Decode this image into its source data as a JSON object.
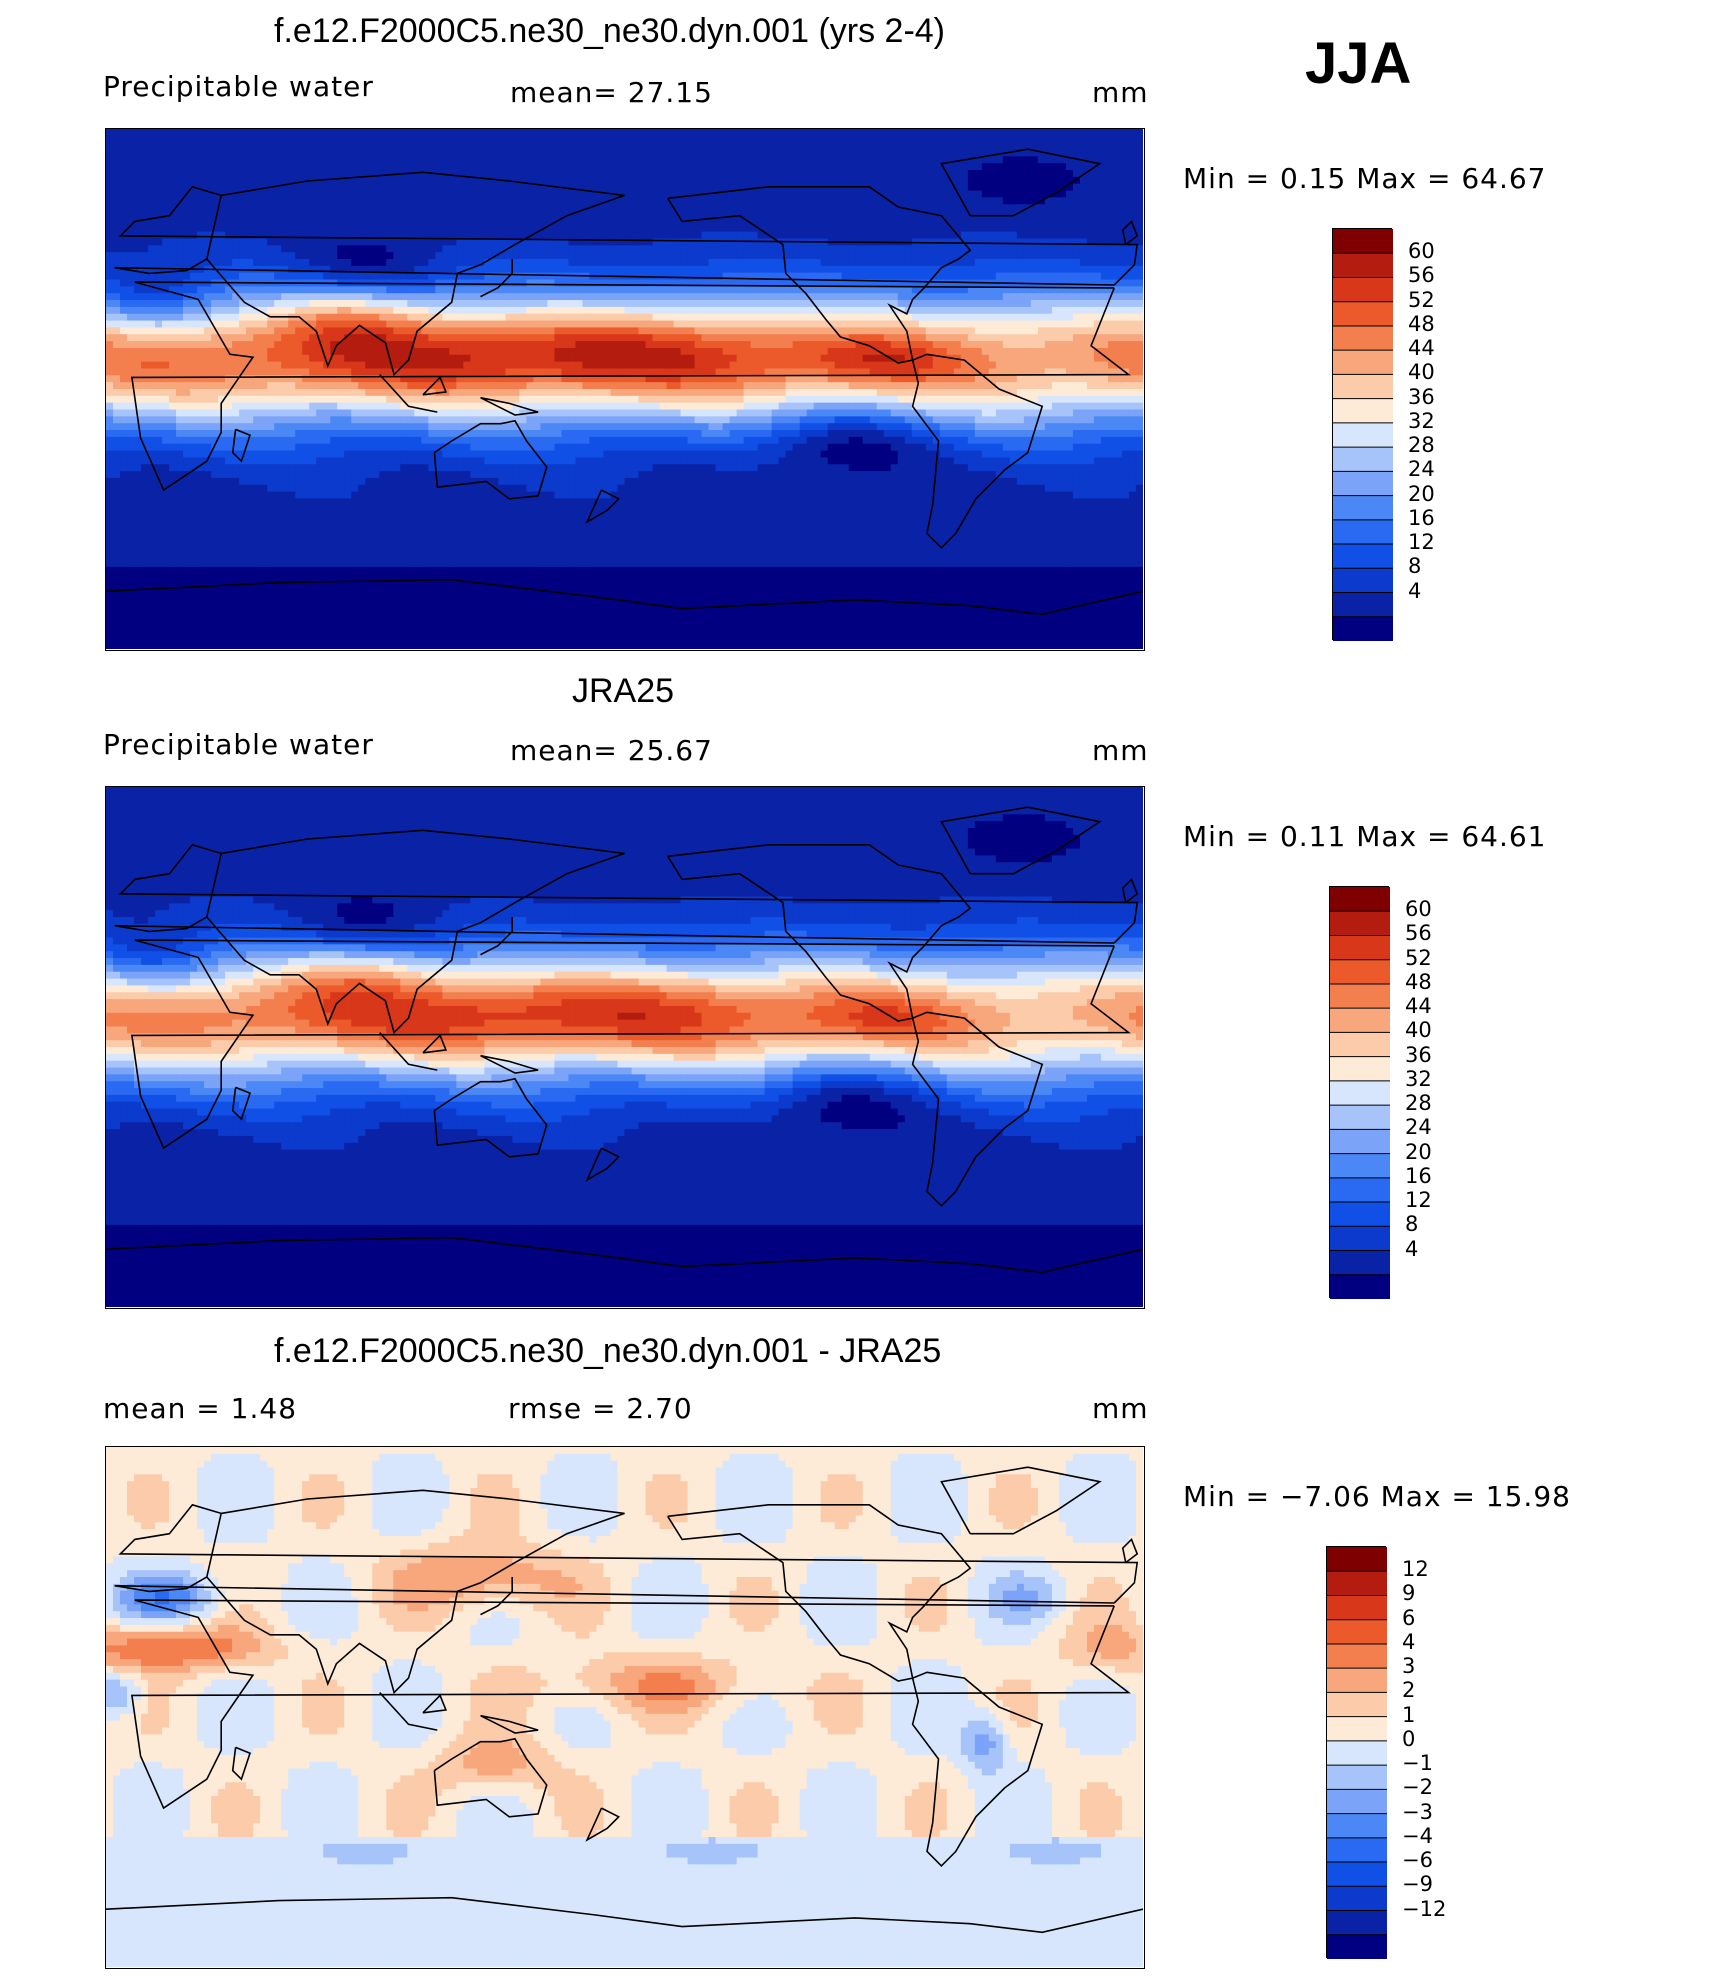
{
  "season": "JJA",
  "colors": {
    "full_field": [
      "#000080",
      "#0a23a6",
      "#0b3acc",
      "#1150e6",
      "#2a6af2",
      "#4b88f5",
      "#7ba3f7",
      "#a6c4fa",
      "#d7e6fc",
      "#fdebd8",
      "#fbcbaa",
      "#f8a77c",
      "#f47f4e",
      "#ec5a2b",
      "#d8371a",
      "#b31c0e",
      "#7f0000"
    ],
    "difference": [
      "#000080",
      "#0a23a6",
      "#0b3acc",
      "#1150e6",
      "#2a6af2",
      "#4b88f5",
      "#7ba3f7",
      "#a6c4fa",
      "#d7e6fc",
      "#fdebd8",
      "#fbcbaa",
      "#f8a77c",
      "#f47f4e",
      "#ec5a2b",
      "#d8371a",
      "#b31c0e",
      "#7f0000"
    ]
  },
  "panels": [
    {
      "title": "f.e12.F2000C5.ne30_ne30.dyn.001 (yrs 2-4)",
      "left_label": "Precipitable  water",
      "center_label": "mean=   27.15",
      "units": "mm",
      "minmax": "Min  =     0.15  Max  =    64.67"
    },
    {
      "title": "JRA25",
      "left_label": "Precipitable  water",
      "center_label": "mean=   25.67",
      "units": "mm",
      "minmax": "Min  =     0.11  Max  =    64.61"
    },
    {
      "title": "f.e12.F2000C5.ne30_ne30.dyn.001 - JRA25",
      "left_label": "mean  =     1.48",
      "center_label": "rmse  =     2.70",
      "units": "mm",
      "minmax": "Min  =   −7.06  Max  =    15.98"
    }
  ],
  "chart_data": [
    {
      "type": "heatmap",
      "title": "f.e12.F2000C5.ne30_ne30.dyn.001 (yrs 2-4)",
      "variable": "Precipitable water",
      "units": "mm",
      "mean": 27.15,
      "min": 0.15,
      "max": 64.67,
      "colorbar_levels": [
        60,
        56,
        52,
        48,
        44,
        40,
        36,
        32,
        28,
        24,
        20,
        16,
        12,
        8,
        4
      ],
      "colorbar_labels": [
        "60",
        "56",
        "52",
        "48",
        "44",
        "40",
        "36",
        "32",
        "28",
        "24",
        "20",
        "16",
        "12",
        "8",
        "4"
      ]
    },
    {
      "type": "heatmap",
      "title": "JRA25",
      "variable": "Precipitable water",
      "units": "mm",
      "mean": 25.67,
      "min": 0.11,
      "max": 64.61,
      "colorbar_levels": [
        60,
        56,
        52,
        48,
        44,
        40,
        36,
        32,
        28,
        24,
        20,
        16,
        12,
        8,
        4
      ],
      "colorbar_labels": [
        "60",
        "56",
        "52",
        "48",
        "44",
        "40",
        "36",
        "32",
        "28",
        "24",
        "20",
        "16",
        "12",
        "8",
        "4"
      ]
    },
    {
      "type": "heatmap",
      "title": "f.e12.F2000C5.ne30_ne30.dyn.001 - JRA25",
      "units": "mm",
      "mean": 1.48,
      "rmse": 2.7,
      "min": -7.06,
      "max": 15.98,
      "colorbar_levels": [
        12,
        9,
        6,
        4,
        3,
        2,
        1,
        0,
        -1,
        -2,
        -3,
        -4,
        -6,
        -9,
        -12
      ],
      "colorbar_labels": [
        "12",
        "9",
        "6",
        "4",
        "3",
        "2",
        "1",
        "0",
        "−1",
        "−2",
        "−3",
        "−4",
        "−6",
        "−9",
        "−12"
      ]
    }
  ]
}
